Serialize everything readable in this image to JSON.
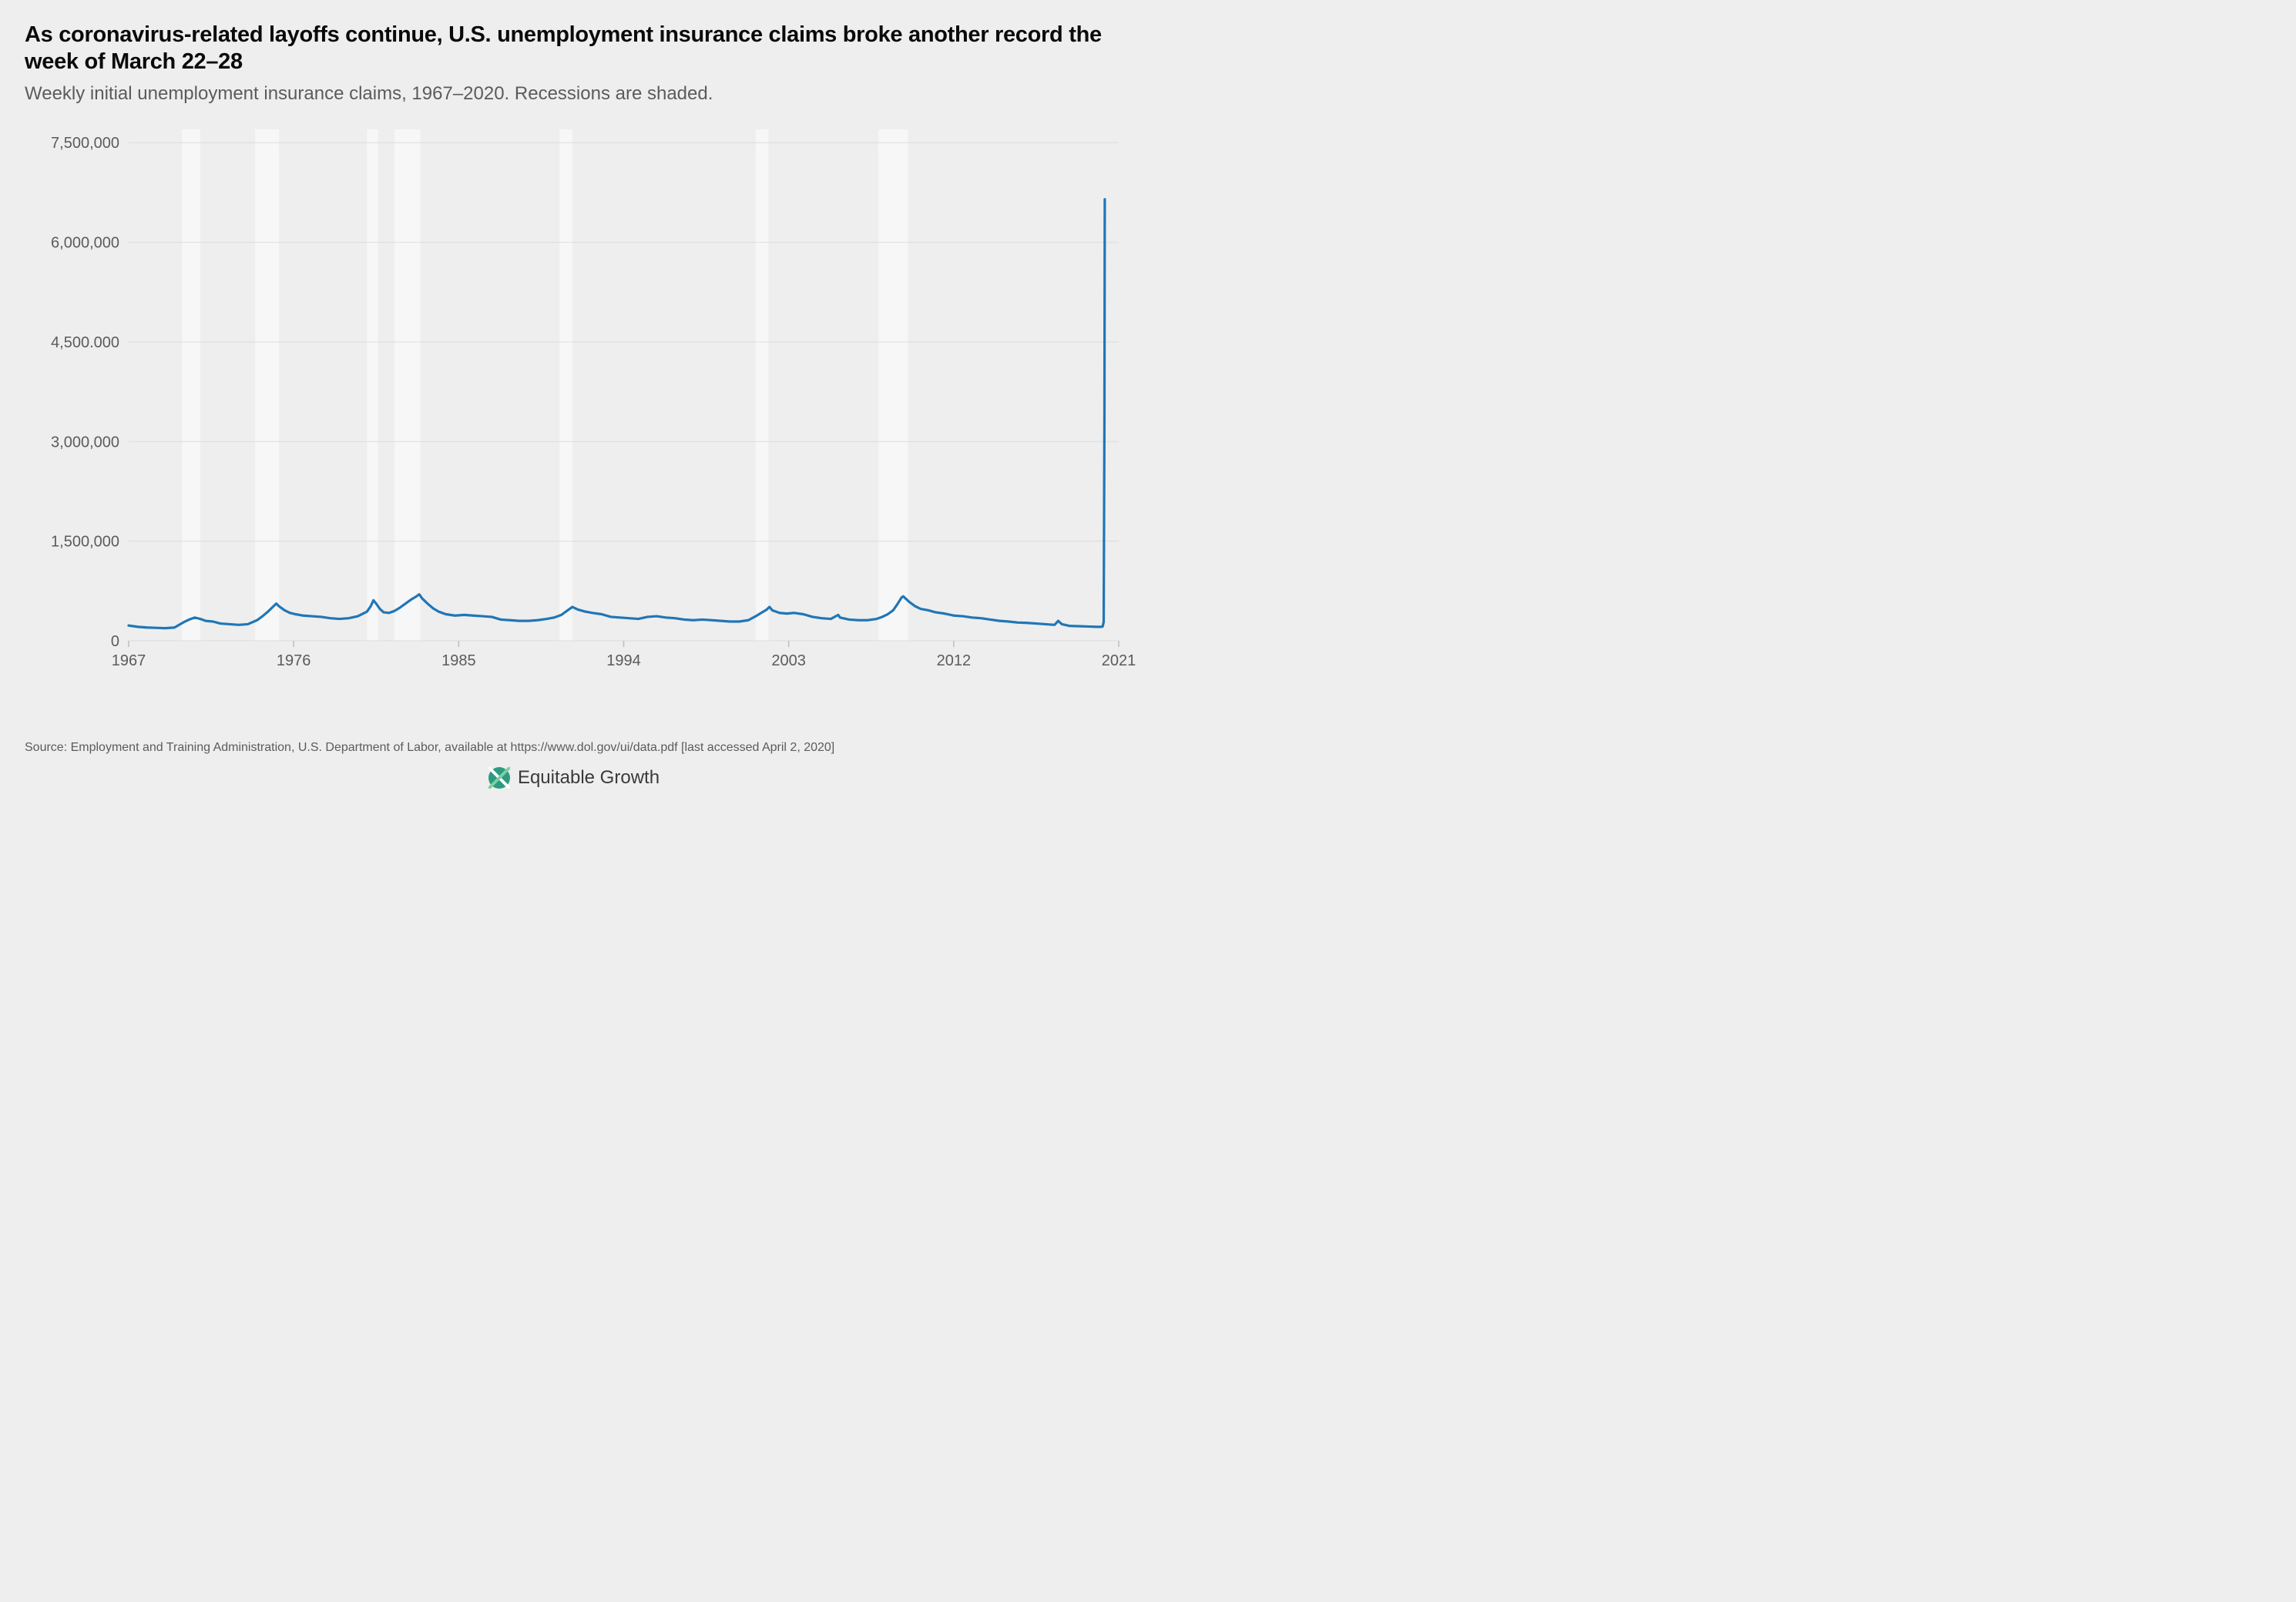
{
  "title": "As coronavirus-related layoffs continue, U.S. unemployment insurance claims broke another record the week of March 22–28",
  "subtitle": "Weekly initial unemployment insurance claims, 1967–2020. Recessions are shaded.",
  "source": "Source: Employment and Training Administration, U.S. Department of Labor, available at https://www.dol.gov/ui/data.pdf [last accessed April 2, 2020]",
  "brand": "Equitable Growth",
  "chart": {
    "type": "line",
    "x_domain": [
      1967,
      2021
    ],
    "y_domain": [
      0,
      7700000
    ],
    "y_ticks": [
      0,
      1500000,
      3000000,
      4500000,
      6000000,
      7500000
    ],
    "y_tick_labels": [
      "0",
      "1,500,000",
      "3,000,000",
      "4,500.000",
      "6,000,000",
      "7,500,000"
    ],
    "x_ticks": [
      1967,
      1976,
      1985,
      1994,
      2003,
      2012,
      2021
    ],
    "x_tick_labels": [
      "1967",
      "1976",
      "1985",
      "1994",
      "2003",
      "2012",
      "2021"
    ],
    "background_color": "#eeeeee",
    "gridline_color": "#dcdcdc",
    "recession_shade_color": "#f7f7f7",
    "line_color": "#2076b6",
    "line_width": 3.2,
    "tick_font_size": 20,
    "tick_font_color": "#5b5b5b",
    "recessions": [
      [
        1969.9,
        1970.9
      ],
      [
        1973.9,
        1975.2
      ],
      [
        1980.0,
        1980.6
      ],
      [
        1981.5,
        1982.9
      ],
      [
        1990.5,
        1991.2
      ],
      [
        2001.2,
        2001.9
      ],
      [
        2007.9,
        2009.5
      ]
    ],
    "series": [
      [
        1967.0,
        230000
      ],
      [
        1967.5,
        210000
      ],
      [
        1968.0,
        200000
      ],
      [
        1968.5,
        195000
      ],
      [
        1969.0,
        190000
      ],
      [
        1969.5,
        200000
      ],
      [
        1970.0,
        280000
      ],
      [
        1970.3,
        320000
      ],
      [
        1970.6,
        350000
      ],
      [
        1970.9,
        330000
      ],
      [
        1971.2,
        300000
      ],
      [
        1971.6,
        290000
      ],
      [
        1972.0,
        260000
      ],
      [
        1972.5,
        250000
      ],
      [
        1973.0,
        240000
      ],
      [
        1973.5,
        250000
      ],
      [
        1974.0,
        310000
      ],
      [
        1974.3,
        370000
      ],
      [
        1974.6,
        440000
      ],
      [
        1974.9,
        520000
      ],
      [
        1975.05,
        560000
      ],
      [
        1975.2,
        520000
      ],
      [
        1975.5,
        460000
      ],
      [
        1975.8,
        420000
      ],
      [
        1976.1,
        400000
      ],
      [
        1976.5,
        380000
      ],
      [
        1977.0,
        370000
      ],
      [
        1977.5,
        360000
      ],
      [
        1978.0,
        340000
      ],
      [
        1978.5,
        330000
      ],
      [
        1979.0,
        340000
      ],
      [
        1979.5,
        370000
      ],
      [
        1980.0,
        440000
      ],
      [
        1980.2,
        520000
      ],
      [
        1980.35,
        610000
      ],
      [
        1980.5,
        560000
      ],
      [
        1980.7,
        480000
      ],
      [
        1980.9,
        430000
      ],
      [
        1981.2,
        420000
      ],
      [
        1981.5,
        450000
      ],
      [
        1981.8,
        500000
      ],
      [
        1982.1,
        560000
      ],
      [
        1982.4,
        620000
      ],
      [
        1982.7,
        670000
      ],
      [
        1982.85,
        700000
      ],
      [
        1983.0,
        640000
      ],
      [
        1983.3,
        560000
      ],
      [
        1983.6,
        490000
      ],
      [
        1983.9,
        440000
      ],
      [
        1984.3,
        400000
      ],
      [
        1984.8,
        380000
      ],
      [
        1985.3,
        390000
      ],
      [
        1985.8,
        380000
      ],
      [
        1986.3,
        370000
      ],
      [
        1986.8,
        360000
      ],
      [
        1987.3,
        320000
      ],
      [
        1987.8,
        310000
      ],
      [
        1988.3,
        300000
      ],
      [
        1988.8,
        300000
      ],
      [
        1989.3,
        310000
      ],
      [
        1989.8,
        330000
      ],
      [
        1990.2,
        350000
      ],
      [
        1990.6,
        390000
      ],
      [
        1991.0,
        470000
      ],
      [
        1991.2,
        510000
      ],
      [
        1991.5,
        470000
      ],
      [
        1991.9,
        440000
      ],
      [
        1992.3,
        420000
      ],
      [
        1992.8,
        400000
      ],
      [
        1993.3,
        360000
      ],
      [
        1993.8,
        350000
      ],
      [
        1994.3,
        340000
      ],
      [
        1994.8,
        330000
      ],
      [
        1995.3,
        360000
      ],
      [
        1995.8,
        370000
      ],
      [
        1996.3,
        350000
      ],
      [
        1996.8,
        340000
      ],
      [
        1997.3,
        320000
      ],
      [
        1997.8,
        310000
      ],
      [
        1998.3,
        320000
      ],
      [
        1998.8,
        310000
      ],
      [
        1999.3,
        300000
      ],
      [
        1999.8,
        290000
      ],
      [
        2000.3,
        290000
      ],
      [
        2000.8,
        310000
      ],
      [
        2001.2,
        370000
      ],
      [
        2001.5,
        420000
      ],
      [
        2001.8,
        470000
      ],
      [
        2001.95,
        510000
      ],
      [
        2002.1,
        460000
      ],
      [
        2002.5,
        420000
      ],
      [
        2002.9,
        410000
      ],
      [
        2003.3,
        420000
      ],
      [
        2003.8,
        400000
      ],
      [
        2004.3,
        360000
      ],
      [
        2004.8,
        340000
      ],
      [
        2005.3,
        330000
      ],
      [
        2005.7,
        390000
      ],
      [
        2005.8,
        350000
      ],
      [
        2006.3,
        320000
      ],
      [
        2006.8,
        310000
      ],
      [
        2007.3,
        310000
      ],
      [
        2007.8,
        330000
      ],
      [
        2008.1,
        360000
      ],
      [
        2008.4,
        400000
      ],
      [
        2008.7,
        460000
      ],
      [
        2008.95,
        560000
      ],
      [
        2009.15,
        650000
      ],
      [
        2009.25,
        670000
      ],
      [
        2009.4,
        630000
      ],
      [
        2009.6,
        580000
      ],
      [
        2009.9,
        520000
      ],
      [
        2010.2,
        480000
      ],
      [
        2010.6,
        460000
      ],
      [
        2011.0,
        430000
      ],
      [
        2011.5,
        410000
      ],
      [
        2012.0,
        380000
      ],
      [
        2012.5,
        370000
      ],
      [
        2013.0,
        350000
      ],
      [
        2013.5,
        340000
      ],
      [
        2014.0,
        320000
      ],
      [
        2014.5,
        300000
      ],
      [
        2015.0,
        290000
      ],
      [
        2015.5,
        275000
      ],
      [
        2016.0,
        270000
      ],
      [
        2016.5,
        260000
      ],
      [
        2017.0,
        250000
      ],
      [
        2017.5,
        240000
      ],
      [
        2017.7,
        300000
      ],
      [
        2017.9,
        250000
      ],
      [
        2018.3,
        225000
      ],
      [
        2018.8,
        220000
      ],
      [
        2019.3,
        215000
      ],
      [
        2019.8,
        210000
      ],
      [
        2020.05,
        210000
      ],
      [
        2020.12,
        215000
      ],
      [
        2020.18,
        282000
      ],
      [
        2020.22,
        3307000
      ],
      [
        2020.24,
        6648000
      ]
    ]
  }
}
